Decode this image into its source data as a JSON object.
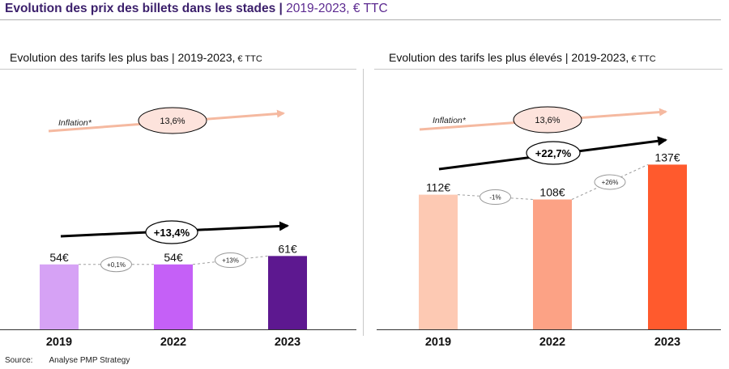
{
  "page": {
    "title_bold": "Evolution des prix des billets dans les stades |",
    "title_rest": " 2019-2023, € TTC",
    "source_label": "Source:",
    "source_value": "Analyse PMP Strategy"
  },
  "colors": {
    "title": "#3b1f6b",
    "inflation_arrow": "#f5b9a0",
    "inflation_bubble": "#fde3dc",
    "low_bars": [
      "#d6a2f5",
      "#c560f7",
      "#5d1890"
    ],
    "high_bars": [
      "#fdc9b3",
      "#fca285",
      "#ff5a2d"
    ]
  },
  "panels": {
    "low": {
      "title": "Evolution des tarifs les plus bas",
      "subtitle_main": " | 2019-2023,",
      "subtitle_small": " € TTC",
      "inflation_label": "Inflation*",
      "inflation_value": "13,6%",
      "total_change": "+13,4%"
    },
    "high": {
      "title": "Evolution des tarifs les plus élevés",
      "subtitle_main": " | 2019-2023,",
      "subtitle_small": " € TTC",
      "inflation_label": "Inflation*",
      "inflation_value": "13,6%",
      "total_change": "+22,7%"
    }
  },
  "chart_data": [
    {
      "type": "bar",
      "title": "Evolution des tarifs les plus bas | 2019-2023, € TTC",
      "categories": [
        "2019",
        "2022",
        "2023"
      ],
      "values": [
        54,
        54,
        61
      ],
      "value_labels": [
        "54€",
        "54€",
        "61€"
      ],
      "changes": [
        "+0,1%",
        "+13%"
      ],
      "total_change": "+13,4%",
      "inflation": "13,6%",
      "ylim": [
        0,
        150
      ],
      "unit": "€ TTC"
    },
    {
      "type": "bar",
      "title": "Evolution des tarifs les plus élevés | 2019-2023, € TTC",
      "categories": [
        "2019",
        "2022",
        "2023"
      ],
      "values": [
        112,
        108,
        137
      ],
      "value_labels": [
        "112€",
        "108€",
        "137€"
      ],
      "changes": [
        "-1%",
        "+26%"
      ],
      "total_change": "+22,7%",
      "inflation": "13,6%",
      "ylim": [
        0,
        150
      ],
      "unit": "€ TTC"
    }
  ]
}
